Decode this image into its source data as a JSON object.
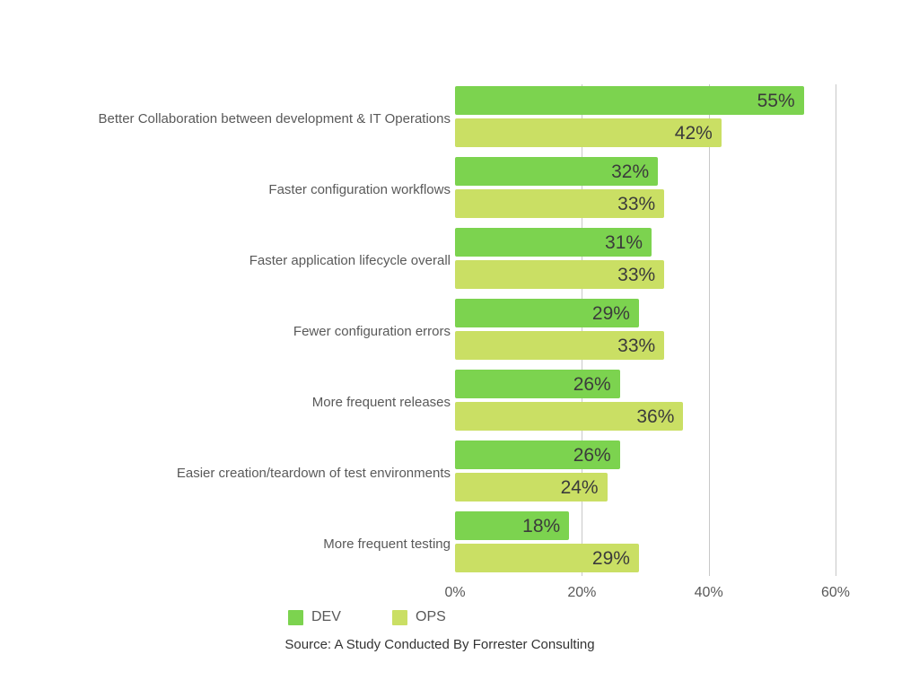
{
  "chart_data": {
    "type": "bar",
    "orientation": "horizontal",
    "categories": [
      "Better Collaboration between development & IT Operations",
      "Faster configuration workflows",
      "Faster application lifecycle overall",
      "Fewer configuration errors",
      "More frequent releases",
      "Easier creation/teardown of test environments",
      "More frequent testing"
    ],
    "series": [
      {
        "name": "DEV",
        "color": "#7cd34f",
        "values": [
          55,
          32,
          31,
          29,
          26,
          26,
          18
        ]
      },
      {
        "name": "OPS",
        "color": "#cadf64",
        "values": [
          42,
          33,
          33,
          33,
          36,
          24,
          29
        ]
      }
    ],
    "value_suffix": "%",
    "x_ticks": [
      {
        "value": 0,
        "label": "0%"
      },
      {
        "value": 20,
        "label": "20%"
      },
      {
        "value": 40,
        "label": "40%"
      },
      {
        "value": 60,
        "label": "60%"
      }
    ],
    "xlim": [
      0,
      60
    ],
    "grid": "vertical-only",
    "legend_position": "bottom",
    "source": "Source: A Study Conducted By Forrester Consulting"
  },
  "colors": {
    "gridline": "#c8c8c8",
    "category_text": "#595959",
    "value_text": "#3b3b3b",
    "tick_text": "#595959",
    "source_text": "#333333",
    "background": "#ffffff"
  }
}
